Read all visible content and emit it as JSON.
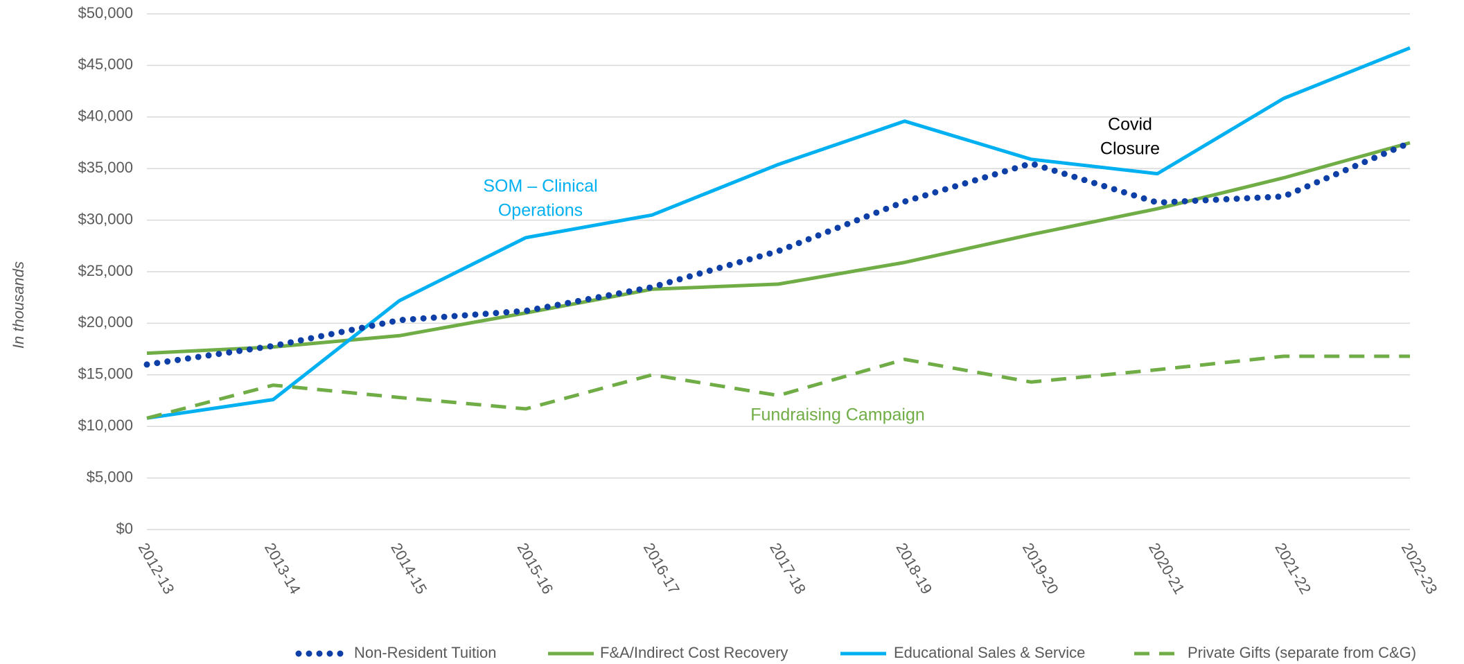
{
  "chart_data": {
    "type": "line",
    "y_axis_label": "In thousands",
    "categories": [
      "2012-13",
      "2013-14",
      "2014-15",
      "2015-16",
      "2016-17",
      "2017-18",
      "2018-19",
      "2019-20",
      "2020-21",
      "2021-22",
      "2022-23"
    ],
    "series": [
      {
        "name": "Non-Resident Tuition",
        "color": "#0d3fa6",
        "dash": "dotted",
        "values": [
          16000,
          17800,
          20300,
          21200,
          23500,
          27000,
          31800,
          35500,
          31700,
          32300,
          37500
        ]
      },
      {
        "name": "F&A/Indirect Cost Recovery",
        "color": "#70ad47",
        "dash": "solid",
        "values": [
          17100,
          17700,
          18800,
          21000,
          23300,
          23800,
          25900,
          28600,
          31100,
          34100,
          37500
        ]
      },
      {
        "name": "Educational Sales & Service",
        "color": "#00b0f0",
        "dash": "solid",
        "values": [
          10800,
          12600,
          22200,
          28300,
          30500,
          35400,
          39600,
          35900,
          34500,
          41800,
          46700
        ]
      },
      {
        "name": "Private Gifts (separate from C&G)",
        "color": "#70ad47",
        "dash": "dashed",
        "values": [
          10800,
          14000,
          12800,
          11700,
          15000,
          13000,
          16500,
          14300,
          15500,
          16800,
          16800
        ]
      }
    ],
    "annotations": [
      {
        "lines": [
          "SOM – Clinical",
          "Operations"
        ],
        "color": "#00b0f0"
      },
      {
        "lines": [
          "Covid",
          "Closure"
        ],
        "color": "#000000"
      },
      {
        "lines": [
          "Fundraising Campaign"
        ],
        "color": "#70ad47"
      }
    ],
    "ylim": [
      0,
      50000
    ],
    "yticks": [
      {
        "value": 0,
        "label": "$0"
      },
      {
        "value": 5000,
        "label": "$5,000"
      },
      {
        "value": 10000,
        "label": "$10,000"
      },
      {
        "value": 15000,
        "label": "$15,000"
      },
      {
        "value": 20000,
        "label": "$20,000"
      },
      {
        "value": 25000,
        "label": "$25,000"
      },
      {
        "value": 30000,
        "label": "$30,000"
      },
      {
        "value": 35000,
        "label": "$35,000"
      },
      {
        "value": 40000,
        "label": "$40,000"
      },
      {
        "value": 45000,
        "label": "$45,000"
      },
      {
        "value": 50000,
        "label": "$50,000"
      }
    ],
    "grid": true,
    "legend": "bottom"
  }
}
